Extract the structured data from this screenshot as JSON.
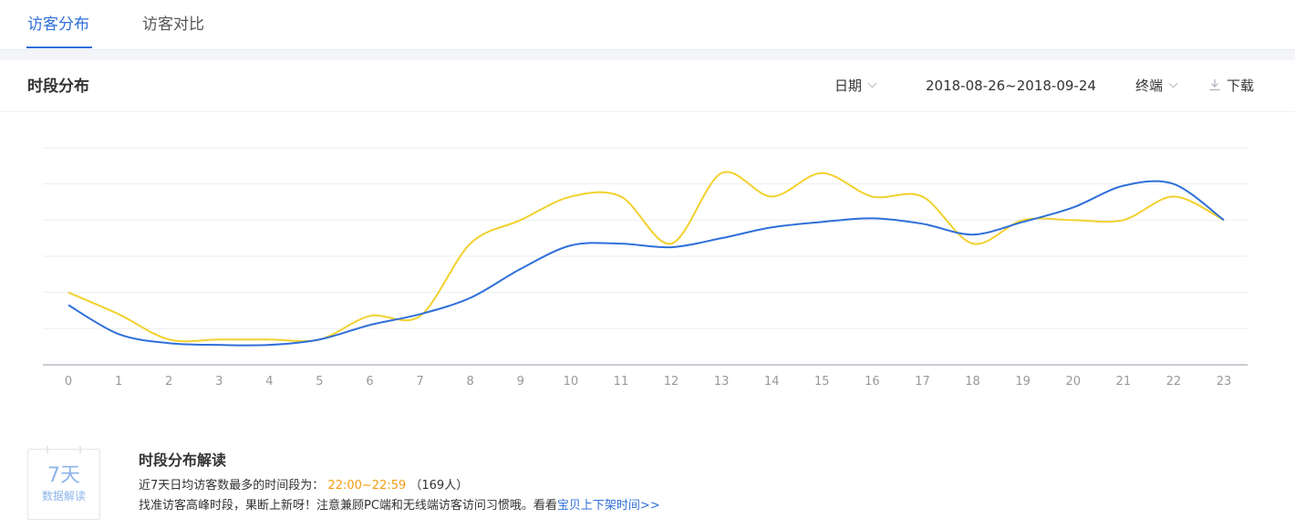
{
  "tabs": [
    {
      "label": "访客分布",
      "active": true
    },
    {
      "label": "访客对比",
      "active": false
    }
  ],
  "panel": {
    "title": "时段分布",
    "date_label": "日期",
    "date_range": "2018-08-26~2018-09-24",
    "terminal_label": "终端",
    "download_label": "下载"
  },
  "colors": {
    "accent": "#2f6fd9",
    "series_blue": "#2f6fd9",
    "series_yellow": "#f2d12e",
    "highlight": "#f39c12"
  },
  "chart_data": {
    "type": "line",
    "categories": [
      "0",
      "1",
      "2",
      "3",
      "4",
      "5",
      "6",
      "7",
      "8",
      "9",
      "10",
      "11",
      "12",
      "13",
      "14",
      "15",
      "16",
      "17",
      "18",
      "19",
      "20",
      "21",
      "22",
      "23"
    ],
    "y_range": [
      0,
      6
    ],
    "grid": true,
    "legend": "none",
    "series": [
      {
        "color": "#2f6fd9",
        "values": [
          1.65,
          0.85,
          0.6,
          0.55,
          0.55,
          0.7,
          1.1,
          1.4,
          1.85,
          2.65,
          3.3,
          3.35,
          3.25,
          3.5,
          3.8,
          3.95,
          4.05,
          3.9,
          3.6,
          3.95,
          4.35,
          4.95,
          5.0,
          4.0
        ]
      },
      {
        "color": "#f2d12e",
        "values": [
          2.0,
          1.4,
          0.7,
          0.7,
          0.7,
          0.7,
          1.35,
          1.35,
          3.35,
          4.0,
          4.65,
          4.65,
          3.35,
          5.3,
          4.65,
          5.3,
          4.65,
          4.65,
          3.35,
          4.0,
          4.0,
          4.0,
          4.65,
          4.0
        ]
      }
    ]
  },
  "insight": {
    "badge_main": "7天",
    "badge_sub": "数据解读",
    "title": "时段分布解读",
    "line1_prefix": "近7天日均访客数最多的时间段为：",
    "line1_time": "22:00~22:59",
    "line1_suffix": "（169人）",
    "line2_text": "找准访客高峰时段，果断上新呀！注意兼顾PC端和无线端访客访问习惯哦。看看",
    "line2_link": "宝贝上下架时间>>"
  }
}
